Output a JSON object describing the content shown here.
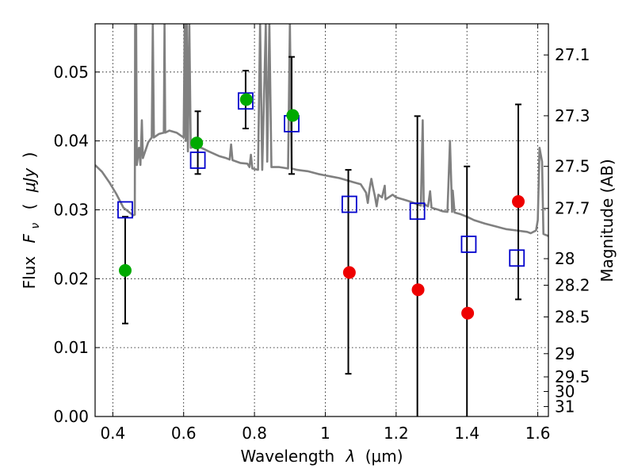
{
  "chart_data": {
    "type": "scatter",
    "xlabel": "Wavelength",
    "xlabel_symbol": "λ",
    "xlabel_unit": "(μm)",
    "ylabel": "Flux",
    "ylabel_symbol": "F",
    "ylabel_subscript": "ν",
    "ylabel_unit_open": "(",
    "ylabel_unit": "μJy",
    "ylabel_unit_close": ")",
    "y2label": "Magnitude (AB)",
    "xlim": [
      0.35,
      1.63
    ],
    "ylim": [
      0.0,
      0.057
    ],
    "grid": true,
    "xticks": [
      "0.4",
      "0.6",
      "0.8",
      "1",
      "1.2",
      "1.4",
      "1.6"
    ],
    "yticks": [
      "0.00",
      "0.01",
      "0.02",
      "0.03",
      "0.04",
      "0.05"
    ],
    "mag_ticks": [
      "27.1",
      "27.3",
      "27.5",
      "27.7",
      "28",
      "28.2",
      "28.5",
      "29",
      "29.5",
      "30",
      "31"
    ],
    "colors": {
      "model": "#808080",
      "model_flux": "#0000cc",
      "detected": "#00aa00",
      "upper_limit": "#ee0000",
      "errorbar": "#000000"
    },
    "errorbars": [
      {
        "x": 0.435,
        "low": 0.0135,
        "high": 0.029
      },
      {
        "x": 0.64,
        "low": 0.0352,
        "high": 0.0443
      },
      {
        "x": 0.775,
        "low": 0.0418,
        "high": 0.0502
      },
      {
        "x": 0.905,
        "low": 0.0352,
        "high": 0.0522
      },
      {
        "x": 1.065,
        "low": 0.0062,
        "high": 0.0358
      },
      {
        "x": 1.26,
        "low": 0.0,
        "high": 0.0436
      },
      {
        "x": 1.4,
        "low": 0.0,
        "high": 0.0363
      },
      {
        "x": 1.545,
        "low": 0.017,
        "high": 0.0453
      }
    ],
    "series": [
      {
        "marker": "square",
        "points": [
          [
            0.435,
            0.03
          ],
          [
            0.64,
            0.0372
          ],
          [
            0.775,
            0.0458
          ],
          [
            0.905,
            0.0425
          ],
          [
            1.068,
            0.0308
          ],
          [
            1.26,
            0.0298
          ],
          [
            1.405,
            0.025
          ],
          [
            1.541,
            0.023
          ]
        ]
      },
      {
        "marker": "circle",
        "points": [
          [
            0.435,
            0.0212
          ],
          [
            0.637,
            0.0397
          ],
          [
            0.777,
            0.046
          ],
          [
            0.908,
            0.0437
          ]
        ]
      },
      {
        "marker": "circle",
        "points": [
          [
            1.068,
            0.0209
          ],
          [
            1.262,
            0.0184
          ],
          [
            1.402,
            0.015
          ],
          [
            1.545,
            0.0312
          ]
        ]
      }
    ],
    "model_spectrum": [
      [
        0.35,
        0.0365
      ],
      [
        0.37,
        0.0355
      ],
      [
        0.39,
        0.034
      ],
      [
        0.41,
        0.0323
      ],
      [
        0.43,
        0.0303
      ],
      [
        0.45,
        0.0295
      ],
      [
        0.458,
        0.0292
      ],
      [
        0.462,
        0.0293
      ],
      [
        0.463,
        0.057
      ],
      [
        0.466,
        0.057
      ],
      [
        0.468,
        0.0365
      ],
      [
        0.474,
        0.039
      ],
      [
        0.478,
        0.0365
      ],
      [
        0.482,
        0.043
      ],
      [
        0.485,
        0.0375
      ],
      [
        0.5,
        0.0398
      ],
      [
        0.51,
        0.0405
      ],
      [
        0.513,
        0.057
      ],
      [
        0.516,
        0.0405
      ],
      [
        0.53,
        0.041
      ],
      [
        0.544,
        0.0412
      ],
      [
        0.546,
        0.057
      ],
      [
        0.548,
        0.0412
      ],
      [
        0.56,
        0.0415
      ],
      [
        0.58,
        0.0412
      ],
      [
        0.6,
        0.0405
      ],
      [
        0.603,
        0.057
      ],
      [
        0.606,
        0.04
      ],
      [
        0.609,
        0.057
      ],
      [
        0.612,
        0.0385
      ],
      [
        0.616,
        0.057
      ],
      [
        0.62,
        0.039
      ],
      [
        0.63,
        0.0392
      ],
      [
        0.65,
        0.039
      ],
      [
        0.67,
        0.0385
      ],
      [
        0.7,
        0.0378
      ],
      [
        0.72,
        0.0375
      ],
      [
        0.73,
        0.0373
      ],
      [
        0.734,
        0.0395
      ],
      [
        0.738,
        0.0372
      ],
      [
        0.76,
        0.0368
      ],
      [
        0.78,
        0.0367
      ],
      [
        0.786,
        0.0362
      ],
      [
        0.79,
        0.038
      ],
      [
        0.794,
        0.036
      ],
      [
        0.81,
        0.0358
      ],
      [
        0.816,
        0.057
      ],
      [
        0.822,
        0.0358
      ],
      [
        0.832,
        0.057
      ],
      [
        0.836,
        0.037
      ],
      [
        0.842,
        0.057
      ],
      [
        0.848,
        0.0362
      ],
      [
        0.87,
        0.0362
      ],
      [
        0.895,
        0.036
      ],
      [
        0.9,
        0.057
      ],
      [
        0.905,
        0.036
      ],
      [
        0.92,
        0.0358
      ],
      [
        0.95,
        0.0356
      ],
      [
        0.98,
        0.0352
      ],
      [
        1.0,
        0.035
      ],
      [
        1.02,
        0.0348
      ],
      [
        1.04,
        0.0346
      ],
      [
        1.06,
        0.0343
      ],
      [
        1.08,
        0.034
      ],
      [
        1.1,
        0.0337
      ],
      [
        1.115,
        0.0325
      ],
      [
        1.12,
        0.031
      ],
      [
        1.125,
        0.033
      ],
      [
        1.13,
        0.0345
      ],
      [
        1.135,
        0.0332
      ],
      [
        1.14,
        0.032
      ],
      [
        1.145,
        0.0305
      ],
      [
        1.15,
        0.0322
      ],
      [
        1.16,
        0.0318
      ],
      [
        1.168,
        0.0335
      ],
      [
        1.17,
        0.0315
      ],
      [
        1.19,
        0.0322
      ],
      [
        1.2,
        0.0318
      ],
      [
        1.22,
        0.0315
      ],
      [
        1.24,
        0.0312
      ],
      [
        1.26,
        0.0308
      ],
      [
        1.27,
        0.0306
      ],
      [
        1.275,
        0.043
      ],
      [
        1.278,
        0.0305
      ],
      [
        1.28,
        0.0308
      ],
      [
        1.29,
        0.0305
      ],
      [
        1.296,
        0.0327
      ],
      [
        1.3,
        0.0303
      ],
      [
        1.32,
        0.03
      ],
      [
        1.33,
        0.0298
      ],
      [
        1.345,
        0.0297
      ],
      [
        1.352,
        0.04
      ],
      [
        1.358,
        0.0297
      ],
      [
        1.36,
        0.0328
      ],
      [
        1.365,
        0.0296
      ],
      [
        1.38,
        0.0294
      ],
      [
        1.4,
        0.029
      ],
      [
        1.42,
        0.0285
      ],
      [
        1.45,
        0.028
      ],
      [
        1.48,
        0.0276
      ],
      [
        1.51,
        0.0272
      ],
      [
        1.54,
        0.027
      ],
      [
        1.57,
        0.0268
      ],
      [
        1.58,
        0.0266
      ],
      [
        1.595,
        0.027
      ],
      [
        1.6,
        0.0285
      ],
      [
        1.605,
        0.039
      ],
      [
        1.612,
        0.037
      ],
      [
        1.616,
        0.0265
      ],
      [
        1.63,
        0.0262
      ]
    ]
  }
}
